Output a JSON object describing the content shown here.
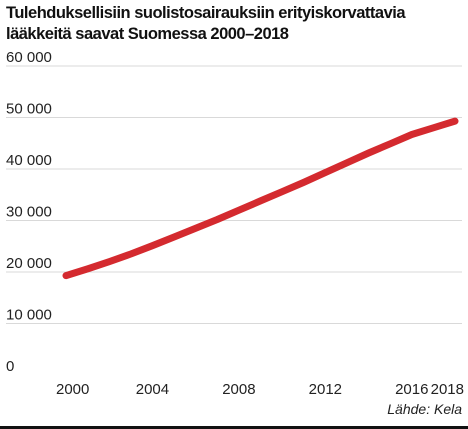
{
  "chart_data": {
    "type": "line",
    "title_lines": [
      "Tulehduksellisiin suolistosairauksiin erityiskorvattavia",
      "lääkkeitä saavat Suomessa 2000–2018"
    ],
    "x": [
      2000,
      2001,
      2002,
      2003,
      2004,
      2005,
      2006,
      2007,
      2008,
      2009,
      2010,
      2011,
      2012,
      2013,
      2014,
      2015,
      2016,
      2017,
      2018
    ],
    "series": [
      {
        "values": [
          19300,
          20600,
          22000,
          23500,
          25100,
          26800,
          28500,
          30200,
          32000,
          33800,
          35600,
          37400,
          39300,
          41200,
          43100,
          44900,
          46700,
          48000,
          49300
        ],
        "color": "#d42a2f"
      }
    ],
    "xticks": [
      2000,
      2004,
      2008,
      2012,
      2016,
      2018
    ],
    "xtick_labels": [
      "2000",
      "2004",
      "2008",
      "2012",
      "2016",
      "2018"
    ],
    "yticks": [
      0,
      10000,
      20000,
      30000,
      40000,
      50000,
      60000
    ],
    "ytick_labels": [
      "0",
      "10 000",
      "20 000",
      "30 000",
      "40 000",
      "50 000",
      "60 000"
    ],
    "xlim": [
      2000,
      2018
    ],
    "ylim": [
      0,
      60000
    ],
    "xlabel": "",
    "ylabel": "",
    "grid": "horizontal",
    "grid_color": "#d9d9d9",
    "source": "Lähde: Kela"
  }
}
